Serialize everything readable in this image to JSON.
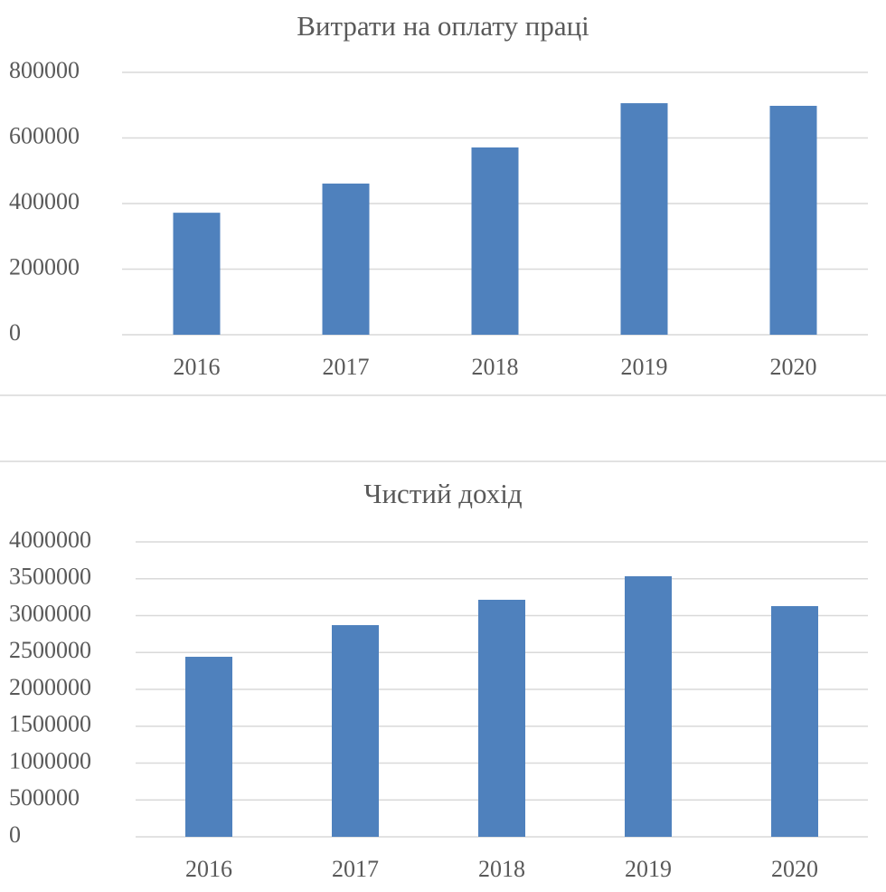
{
  "chart_data": [
    {
      "type": "bar",
      "title": "Витрати на оплату праці",
      "categories": [
        "2016",
        "2017",
        "2018",
        "2019",
        "2020"
      ],
      "values": [
        372000,
        461000,
        571000,
        706000,
        698000
      ],
      "color": "#4f81bd",
      "ylim": [
        0,
        800000
      ],
      "yticks": [
        0,
        200000,
        400000,
        600000,
        800000
      ],
      "grid": true
    },
    {
      "type": "bar",
      "title": "Чистий дохід",
      "categories": [
        "2016",
        "2017",
        "2018",
        "2019",
        "2020"
      ],
      "values": [
        2442000,
        2871000,
        3215000,
        3534000,
        3129000
      ],
      "color": "#4f81bd",
      "ylim": [
        0,
        4000000
      ],
      "yticks": [
        0,
        500000,
        1000000,
        1500000,
        2000000,
        2500000,
        3000000,
        3500000,
        4000000
      ],
      "grid": true
    }
  ]
}
